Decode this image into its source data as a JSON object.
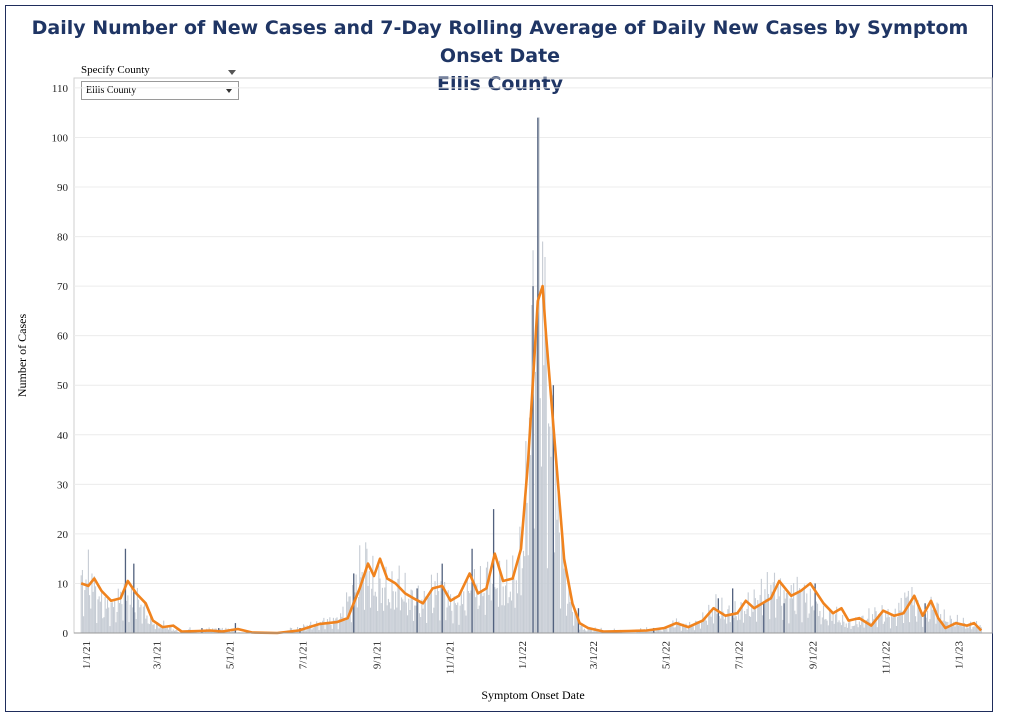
{
  "chart_data": {
    "type": "bar",
    "title_line1": "Daily Number of New Cases and 7-Day Rolling Average of Daily New Cases by Symptom Onset Date",
    "title_line2": "Ellis County",
    "xlabel": "Symptom Onset Date",
    "ylabel": "Number of Cases",
    "ylim": [
      0,
      112
    ],
    "yticks": [
      0,
      10,
      20,
      30,
      40,
      50,
      60,
      70,
      80,
      90,
      100,
      110
    ],
    "xticks": [
      "1/1/21",
      "3/1/21",
      "5/1/21",
      "7/1/21",
      "9/1/21",
      "11/1/21",
      "1/1/22",
      "3/1/22",
      "5/1/22",
      "7/1/22",
      "9/1/22",
      "11/1/22",
      "1/1/23"
    ],
    "grid": "horizontal",
    "legend": "none",
    "colors": {
      "bars": "#c6ccd4",
      "bars_highlight": "#52617e",
      "rolling_average": "#f0831e",
      "title": "#1f3564"
    },
    "series": [
      {
        "kind": "daily_cases",
        "x_range": [
          "12/28/20",
          "1/20/23"
        ],
        "points": [
          [
            "12/28/20",
            12
          ],
          [
            "1/4/21",
            15
          ],
          [
            "1/11/21",
            9
          ],
          [
            "1/18/21",
            7
          ],
          [
            "1/25/21",
            7
          ],
          [
            "2/1/21",
            10
          ],
          [
            "2/8/21",
            8
          ],
          [
            "2/15/21",
            8
          ],
          [
            "2/22/21",
            4
          ],
          [
            "3/1/21",
            2
          ],
          [
            "3/8/21",
            2
          ],
          [
            "3/15/21",
            1
          ],
          [
            "3/22/21",
            0
          ],
          [
            "3/29/21",
            1
          ],
          [
            "4/5/21",
            0
          ],
          [
            "4/12/21",
            1
          ],
          [
            "4/19/21",
            1
          ],
          [
            "4/26/21",
            1
          ],
          [
            "5/3/21",
            1
          ],
          [
            "5/10/21",
            0
          ],
          [
            "5/17/21",
            0
          ],
          [
            "5/24/21",
            0
          ],
          [
            "5/31/21",
            0
          ],
          [
            "6/7/21",
            0
          ],
          [
            "6/14/21",
            0
          ],
          [
            "6/21/21",
            1
          ],
          [
            "6/28/21",
            1
          ],
          [
            "7/5/21",
            2
          ],
          [
            "7/12/21",
            2
          ],
          [
            "7/19/21",
            3
          ],
          [
            "7/26/21",
            3
          ],
          [
            "8/2/21",
            4
          ],
          [
            "8/9/21",
            9
          ],
          [
            "8/16/21",
            14
          ],
          [
            "8/23/21",
            18
          ],
          [
            "8/30/21",
            12
          ],
          [
            "9/6/21",
            12
          ],
          [
            "9/13/21",
            10
          ],
          [
            "9/20/21",
            12
          ],
          [
            "9/27/21",
            9
          ],
          [
            "10/4/21",
            8
          ],
          [
            "10/11/21",
            8
          ],
          [
            "10/18/21",
            11
          ],
          [
            "10/25/21",
            12
          ],
          [
            "11/1/21",
            8
          ],
          [
            "11/8/21",
            7
          ],
          [
            "11/15/21",
            10
          ],
          [
            "11/22/21",
            12
          ],
          [
            "11/29/21",
            11
          ],
          [
            "12/6/21",
            16
          ],
          [
            "12/13/21",
            13
          ],
          [
            "12/20/21",
            12
          ],
          [
            "12/27/21",
            14
          ],
          [
            "1/3/22",
            25
          ],
          [
            "1/10/22",
            75
          ],
          [
            "1/17/22",
            95
          ],
          [
            "1/24/22",
            50
          ],
          [
            "1/31/22",
            30
          ],
          [
            "2/7/22",
            12
          ],
          [
            "2/14/22",
            5
          ],
          [
            "2/21/22",
            1
          ],
          [
            "2/28/22",
            1
          ],
          [
            "3/7/22",
            1
          ],
          [
            "3/14/22",
            0
          ],
          [
            "3/21/22",
            1
          ],
          [
            "3/28/22",
            0
          ],
          [
            "4/4/22",
            0
          ],
          [
            "4/11/22",
            1
          ],
          [
            "4/18/22",
            1
          ],
          [
            "4/25/22",
            1
          ],
          [
            "5/2/22",
            1
          ],
          [
            "5/9/22",
            3
          ],
          [
            "5/16/22",
            2
          ],
          [
            "5/23/22",
            2
          ],
          [
            "5/30/22",
            3
          ],
          [
            "6/6/22",
            5
          ],
          [
            "6/13/22",
            7
          ],
          [
            "6/20/22",
            5
          ],
          [
            "6/27/22",
            5
          ],
          [
            "7/4/22",
            6
          ],
          [
            "7/11/22",
            7
          ],
          [
            "7/18/22",
            9
          ],
          [
            "7/25/22",
            11
          ],
          [
            "8/1/22",
            12
          ],
          [
            "8/8/22",
            9
          ],
          [
            "8/15/22",
            10
          ],
          [
            "8/22/22",
            11
          ],
          [
            "8/29/22",
            8
          ],
          [
            "9/5/22",
            6
          ],
          [
            "9/12/22",
            4
          ],
          [
            "9/19/22",
            5
          ],
          [
            "9/26/22",
            3
          ],
          [
            "10/3/22",
            2
          ],
          [
            "10/10/22",
            3
          ],
          [
            "10/17/22",
            4
          ],
          [
            "10/24/22",
            5
          ],
          [
            "10/31/22",
            5
          ],
          [
            "11/7/22",
            4
          ],
          [
            "11/14/22",
            7
          ],
          [
            "11/21/22",
            10
          ],
          [
            "11/28/22",
            6
          ],
          [
            "12/5/22",
            5
          ],
          [
            "12/12/22",
            7
          ],
          [
            "12/19/22",
            4
          ],
          [
            "12/26/22",
            3
          ],
          [
            "1/2/23",
            3
          ],
          [
            "1/9/23",
            2
          ],
          [
            "1/16/23",
            2
          ]
        ],
        "highlight_spikes": [
          [
            "2/3/21",
            17
          ],
          [
            "2/10/21",
            14
          ],
          [
            "4/8/21",
            1
          ],
          [
            "4/22/21",
            1
          ],
          [
            "5/6/21",
            2
          ],
          [
            "6/29/21",
            1
          ],
          [
            "8/13/21",
            12
          ],
          [
            "10/5/21",
            9
          ],
          [
            "10/26/21",
            14
          ],
          [
            "11/20/21",
            17
          ],
          [
            "12/8/21",
            25
          ],
          [
            "1/10/22",
            70
          ],
          [
            "1/14/22",
            104
          ],
          [
            "1/27/22",
            50
          ],
          [
            "2/17/22",
            5
          ],
          [
            "4/21/22",
            1
          ],
          [
            "6/14/22",
            7
          ],
          [
            "6/26/22",
            9
          ],
          [
            "7/22/22",
            6
          ],
          [
            "8/8/22",
            6
          ],
          [
            "9/3/22",
            10
          ],
          [
            "12/4/22",
            6
          ]
        ]
      },
      {
        "kind": "rolling_average_7day",
        "points": [
          [
            "12/28/20",
            10
          ],
          [
            "1/3/21",
            9.5
          ],
          [
            "1/8/21",
            11
          ],
          [
            "1/14/21",
            8.5
          ],
          [
            "1/22/21",
            6.5
          ],
          [
            "1/30/21",
            7
          ],
          [
            "2/5/21",
            10.5
          ],
          [
            "2/12/21",
            8
          ],
          [
            "2/20/21",
            6
          ],
          [
            "2/26/21",
            2.5
          ],
          [
            "3/6/21",
            1.2
          ],
          [
            "3/15/21",
            1.5
          ],
          [
            "3/22/21",
            0.3
          ],
          [
            "4/5/21",
            0.4
          ],
          [
            "4/15/21",
            0.5
          ],
          [
            "4/25/21",
            0.3
          ],
          [
            "5/8/21",
            0.8
          ],
          [
            "5/20/21",
            0.1
          ],
          [
            "6/10/21",
            0
          ],
          [
            "6/28/21",
            0.5
          ],
          [
            "7/15/21",
            1.8
          ],
          [
            "7/30/21",
            2.2
          ],
          [
            "8/8/21",
            3
          ],
          [
            "8/18/21",
            9
          ],
          [
            "8/25/21",
            14
          ],
          [
            "8/30/21",
            11.5
          ],
          [
            "9/4/21",
            15
          ],
          [
            "9/10/21",
            11
          ],
          [
            "9/17/21",
            10
          ],
          [
            "9/25/21",
            8
          ],
          [
            "10/2/21",
            7
          ],
          [
            "10/10/21",
            6
          ],
          [
            "10/18/21",
            9
          ],
          [
            "10/26/21",
            9.5
          ],
          [
            "11/2/21",
            6.5
          ],
          [
            "11/9/21",
            7.5
          ],
          [
            "11/18/21",
            12
          ],
          [
            "11/25/21",
            8
          ],
          [
            "12/2/21",
            9
          ],
          [
            "12/9/21",
            16
          ],
          [
            "12/16/21",
            10.5
          ],
          [
            "12/24/21",
            11
          ],
          [
            "12/31/21",
            17
          ],
          [
            "1/6/22",
            35
          ],
          [
            "1/11/22",
            55
          ],
          [
            "1/14/22",
            67
          ],
          [
            "1/18/22",
            70
          ],
          [
            "1/21/22",
            60
          ],
          [
            "1/26/22",
            45
          ],
          [
            "1/31/22",
            30
          ],
          [
            "2/5/22",
            15
          ],
          [
            "2/12/22",
            6
          ],
          [
            "2/18/22",
            2
          ],
          [
            "2/25/22",
            1
          ],
          [
            "3/10/22",
            0.3
          ],
          [
            "3/31/22",
            0.4
          ],
          [
            "4/15/22",
            0.5
          ],
          [
            "4/30/22",
            1
          ],
          [
            "5/10/22",
            2
          ],
          [
            "5/20/22",
            1.2
          ],
          [
            "6/1/22",
            2.5
          ],
          [
            "6/10/22",
            5
          ],
          [
            "6/20/22",
            3.5
          ],
          [
            "6/30/22",
            4
          ],
          [
            "7/7/22",
            6.5
          ],
          [
            "7/14/22",
            5
          ],
          [
            "7/28/22",
            7
          ],
          [
            "8/4/22",
            10.5
          ],
          [
            "8/14/22",
            7.5
          ],
          [
            "8/22/22",
            8.5
          ],
          [
            "8/30/22",
            10
          ],
          [
            "9/10/22",
            6
          ],
          [
            "9/18/22",
            4
          ],
          [
            "9/25/22",
            5
          ],
          [
            "10/1/22",
            2.5
          ],
          [
            "10/10/22",
            3
          ],
          [
            "10/20/22",
            1.5
          ],
          [
            "10/30/22",
            4.5
          ],
          [
            "11/8/22",
            3.5
          ],
          [
            "11/16/22",
            4
          ],
          [
            "11/25/22",
            7.5
          ],
          [
            "12/2/22",
            3.5
          ],
          [
            "12/9/22",
            6.5
          ],
          [
            "12/15/22",
            3
          ],
          [
            "12/21/22",
            1
          ],
          [
            "12/30/22",
            2
          ],
          [
            "1/8/23",
            1.5
          ],
          [
            "1/14/23",
            2
          ],
          [
            "1/20/23",
            0.5
          ]
        ]
      }
    ]
  },
  "filter": {
    "label": "Specify County",
    "selected": "Ellis County"
  }
}
